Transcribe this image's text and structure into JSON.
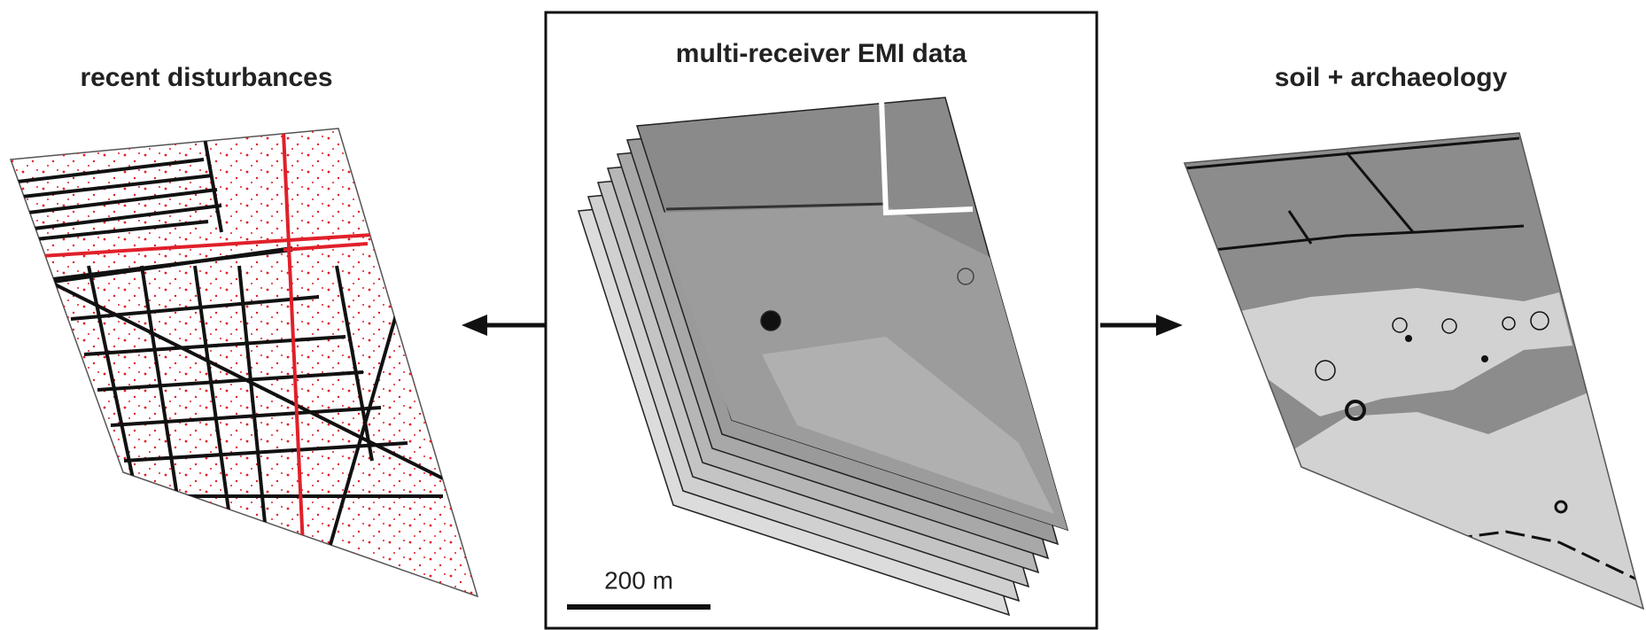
{
  "panels": [
    {
      "title": "recent disturbances"
    },
    {
      "title": "multi-receiver EMI data",
      "scale_label": "200 m"
    },
    {
      "title": "soil + archaeology"
    }
  ]
}
